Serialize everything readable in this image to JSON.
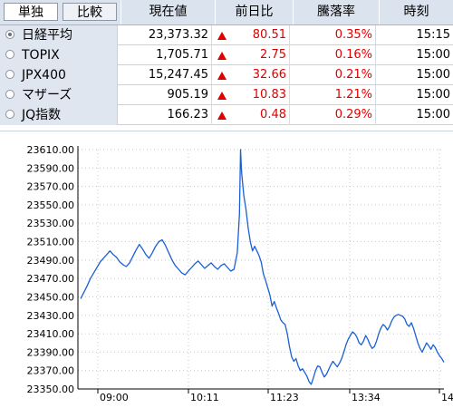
{
  "tabs": [
    {
      "label": "単独",
      "active": true
    },
    {
      "label": "比較",
      "active": false
    }
  ],
  "columns": {
    "price": "現在値",
    "change": "前日比",
    "pct": "騰落率",
    "time": "時刻"
  },
  "rows": [
    {
      "name": "日経平均",
      "selected": true,
      "price": "23,373.32",
      "direction": "up",
      "change": "80.51",
      "pct": "0.35%",
      "time": "15:15"
    },
    {
      "name": "TOPIX",
      "selected": false,
      "price": "1,705.71",
      "direction": "up",
      "change": "2.75",
      "pct": "0.16%",
      "time": "15:00"
    },
    {
      "name": "JPX400",
      "selected": false,
      "price": "15,247.45",
      "direction": "up",
      "change": "32.66",
      "pct": "0.21%",
      "time": "15:00"
    },
    {
      "name": "マザーズ",
      "selected": false,
      "price": "905.19",
      "direction": "up",
      "change": "10.83",
      "pct": "1.21%",
      "time": "15:00"
    },
    {
      "name": "JQ指数",
      "selected": false,
      "price": "166.23",
      "direction": "up",
      "change": "0.48",
      "pct": "0.29%",
      "time": "15:00"
    }
  ],
  "colors": {
    "line": "#1a5fd6",
    "up": "#e00000",
    "header_bg": "#dbe3ee"
  },
  "chart_data": {
    "type": "line",
    "ylim": [
      23350,
      23610
    ],
    "y_ticks": [
      "23610.00",
      "23590.00",
      "23570.00",
      "23550.00",
      "23530.00",
      "23510.00",
      "23490.00",
      "23470.00",
      "23450.00",
      "23430.00",
      "23410.00",
      "23390.00",
      "23370.00",
      "23350.00"
    ],
    "x_ticks": [
      "09:00",
      "10:11",
      "11:23",
      "13:34",
      "14:"
    ],
    "grid": "dotted",
    "series": [
      {
        "values": [
          [
            0,
            23448
          ],
          [
            3,
            23455
          ],
          [
            6,
            23462
          ],
          [
            9,
            23470
          ],
          [
            12,
            23476
          ],
          [
            15,
            23482
          ],
          [
            18,
            23488
          ],
          [
            21,
            23492
          ],
          [
            24,
            23496
          ],
          [
            27,
            23500
          ],
          [
            30,
            23496
          ],
          [
            33,
            23493
          ],
          [
            36,
            23488
          ],
          [
            39,
            23485
          ],
          [
            42,
            23483
          ],
          [
            45,
            23487
          ],
          [
            48,
            23494
          ],
          [
            51,
            23501
          ],
          [
            54,
            23507
          ],
          [
            57,
            23502
          ],
          [
            60,
            23496
          ],
          [
            63,
            23492
          ],
          [
            66,
            23498
          ],
          [
            69,
            23505
          ],
          [
            72,
            23510
          ],
          [
            75,
            23512
          ],
          [
            78,
            23506
          ],
          [
            81,
            23498
          ],
          [
            84,
            23490
          ],
          [
            87,
            23484
          ],
          [
            90,
            23480
          ],
          [
            93,
            23476
          ],
          [
            96,
            23474
          ],
          [
            99,
            23478
          ],
          [
            102,
            23482
          ],
          [
            105,
            23486
          ],
          [
            108,
            23489
          ],
          [
            111,
            23485
          ],
          [
            114,
            23481
          ],
          [
            117,
            23484
          ],
          [
            120,
            23487
          ],
          [
            123,
            23483
          ],
          [
            126,
            23480
          ],
          [
            129,
            23484
          ],
          [
            132,
            23486
          ],
          [
            135,
            23482
          ],
          [
            138,
            23478
          ],
          [
            141,
            23480
          ],
          [
            144,
            23498
          ],
          [
            146,
            23540
          ],
          [
            147,
            23610
          ],
          [
            148,
            23585
          ],
          [
            150,
            23560
          ],
          [
            152,
            23545
          ],
          [
            154,
            23525
          ],
          [
            156,
            23510
          ],
          [
            158,
            23500
          ],
          [
            160,
            23505
          ],
          [
            162,
            23500
          ],
          [
            164,
            23495
          ],
          [
            166,
            23488
          ],
          [
            168,
            23475
          ],
          [
            170,
            23468
          ],
          [
            172,
            23460
          ],
          [
            174,
            23452
          ],
          [
            176,
            23440
          ],
          [
            178,
            23445
          ],
          [
            180,
            23438
          ],
          [
            182,
            23432
          ],
          [
            184,
            23425
          ],
          [
            186,
            23422
          ],
          [
            188,
            23420
          ],
          [
            190,
            23410
          ],
          [
            192,
            23396
          ],
          [
            194,
            23385
          ],
          [
            196,
            23380
          ],
          [
            198,
            23383
          ],
          [
            200,
            23375
          ],
          [
            202,
            23370
          ],
          [
            204,
            23372
          ],
          [
            206,
            23368
          ],
          [
            208,
            23364
          ],
          [
            210,
            23358
          ],
          [
            212,
            23355
          ],
          [
            214,
            23362
          ],
          [
            216,
            23370
          ],
          [
            218,
            23375
          ],
          [
            220,
            23374
          ],
          [
            222,
            23368
          ],
          [
            224,
            23363
          ],
          [
            226,
            23366
          ],
          [
            228,
            23371
          ],
          [
            230,
            23376
          ],
          [
            232,
            23380
          ],
          [
            234,
            23377
          ],
          [
            236,
            23374
          ],
          [
            238,
            23378
          ],
          [
            240,
            23383
          ],
          [
            242,
            23390
          ],
          [
            244,
            23398
          ],
          [
            246,
            23404
          ],
          [
            248,
            23408
          ],
          [
            250,
            23412
          ],
          [
            252,
            23410
          ],
          [
            254,
            23406
          ],
          [
            256,
            23400
          ],
          [
            258,
            23398
          ],
          [
            260,
            23402
          ],
          [
            262,
            23408
          ],
          [
            264,
            23404
          ],
          [
            266,
            23398
          ],
          [
            268,
            23394
          ],
          [
            270,
            23396
          ],
          [
            272,
            23402
          ],
          [
            274,
            23410
          ],
          [
            276,
            23416
          ],
          [
            278,
            23420
          ],
          [
            280,
            23418
          ],
          [
            282,
            23414
          ],
          [
            284,
            23418
          ],
          [
            286,
            23424
          ],
          [
            288,
            23428
          ],
          [
            290,
            23430
          ],
          [
            292,
            23431
          ],
          [
            294,
            23430
          ],
          [
            296,
            23429
          ],
          [
            298,
            23426
          ],
          [
            300,
            23420
          ],
          [
            302,
            23418
          ],
          [
            304,
            23422
          ],
          [
            306,
            23416
          ],
          [
            308,
            23408
          ],
          [
            310,
            23400
          ],
          [
            312,
            23394
          ],
          [
            314,
            23390
          ],
          [
            316,
            23395
          ],
          [
            318,
            23400
          ],
          [
            320,
            23397
          ],
          [
            322,
            23393
          ],
          [
            324,
            23398
          ],
          [
            326,
            23395
          ],
          [
            328,
            23390
          ],
          [
            330,
            23386
          ],
          [
            332,
            23383
          ],
          [
            334,
            23379
          ]
        ]
      }
    ]
  }
}
